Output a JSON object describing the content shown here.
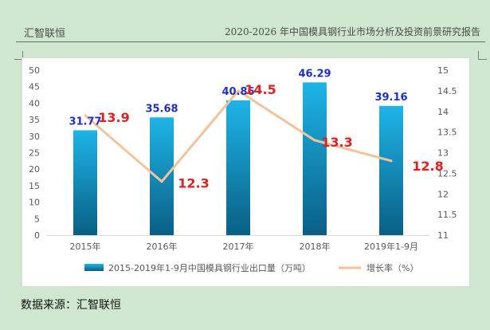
{
  "header": {
    "brand": "汇智联恒",
    "report_title": "2020-2026 年中国模具钢行业市场分析及投资前景研究报告"
  },
  "colors": {
    "page_bg": "#cfe6cf",
    "bar_top": "#1eb4e8",
    "bar_bottom": "#0a5f84",
    "line": "#f2c39b",
    "bar_label": "#1f2fbf",
    "line_label": "#e02020",
    "axis_text": "#595959",
    "grid": "#d9d9d9"
  },
  "chart_data": {
    "type": "bar",
    "categories": [
      "2015年",
      "2016年",
      "2017年",
      "2018年",
      "2019年1-9月"
    ],
    "series": [
      {
        "name": "2015-2019年1-9月中国模具钢行业出口量（万吨）",
        "type": "bar",
        "axis": "left",
        "values": [
          31.77,
          35.68,
          40.86,
          46.29,
          39.16
        ],
        "labels": [
          "31.77",
          "35.68",
          "40.86",
          "46.29",
          "39.16"
        ]
      },
      {
        "name": "增长率（%）",
        "type": "line",
        "axis": "right",
        "values": [
          13.9,
          12.3,
          14.5,
          13.3,
          12.8
        ],
        "labels": [
          "13.9",
          "12.3",
          "14.5",
          "13.3",
          "12.8"
        ]
      }
    ],
    "left_axis": {
      "ylim": [
        0,
        50
      ],
      "ticks": [
        "0",
        "5",
        "10",
        "15",
        "20",
        "25",
        "30",
        "35",
        "40",
        "45",
        "50"
      ]
    },
    "right_axis": {
      "ylim": [
        11,
        15
      ],
      "ticks": [
        "11",
        "11.5",
        "12",
        "12.5",
        "13",
        "13.5",
        "14",
        "14.5",
        "15"
      ]
    },
    "grid": false,
    "legend": "bottom"
  },
  "footer": {
    "source": "数据来源：汇智联恒"
  }
}
